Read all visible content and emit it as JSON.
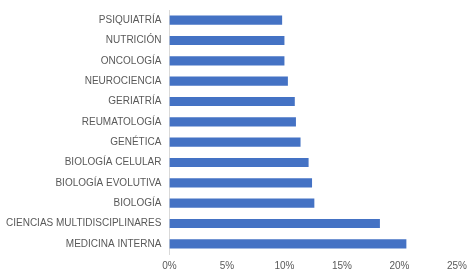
{
  "chart_data": {
    "type": "bar",
    "orientation": "horizontal",
    "categories": [
      "PSIQUIATRÍA",
      "NUTRICIÓN",
      "ONCOLOGÍA",
      "NEUROCIENCIA",
      "GERIATRÍA",
      "REUMATOLOGÍA",
      "GENÉTICA",
      "BIOLOGÍA CELULAR",
      "BIOLOGÍA EVOLUTIVA",
      "BIOLOGÍA",
      "CIENCIAS MULTIDISCIPLINARES",
      "MEDICINA INTERNA"
    ],
    "values": [
      9.8,
      10.0,
      10.0,
      10.3,
      10.9,
      11.0,
      11.4,
      12.1,
      12.4,
      12.6,
      18.3,
      20.6
    ],
    "color": "#4472c4",
    "xlim": [
      0,
      25
    ],
    "xticks": [
      {
        "value": 0,
        "label": "0%"
      },
      {
        "value": 5,
        "label": "5%"
      },
      {
        "value": 10,
        "label": "10%"
      },
      {
        "value": 15,
        "label": "15%"
      },
      {
        "value": 20,
        "label": "20%"
      },
      {
        "value": 25,
        "label": "25%"
      }
    ],
    "grid": false
  }
}
